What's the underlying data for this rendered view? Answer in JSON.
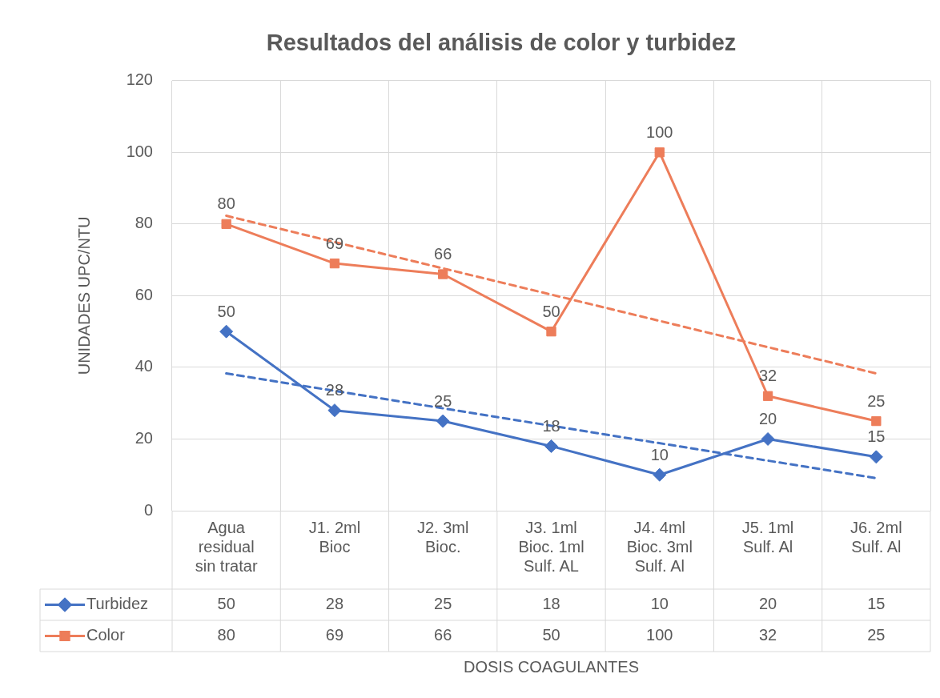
{
  "chart_data": {
    "type": "line",
    "title": "Resultados del análisis de color y turbidez",
    "annotations": [
      "DOSIS COAGULANTES"
    ],
    "ylabel": "UNIDADES UPC/NTU",
    "categories": [
      "Agua residual sin tratar",
      "J1. 2ml Bioc",
      "J2. 3ml Bioc.",
      "J3. 1ml Bioc. 1ml Sulf. AL",
      "J4. 4ml Bioc. 3ml Sulf. Al",
      "J5. 1ml Sulf. Al",
      "J6. 2ml Sulf. Al"
    ],
    "series": [
      {
        "name": "Turbidez",
        "color": "#4472c4",
        "marker": "diamond",
        "values": [
          50,
          28,
          25,
          18,
          10,
          20,
          15
        ],
        "value_labels": [
          "50",
          "28",
          "25",
          "18",
          "10",
          "20",
          "15"
        ]
      },
      {
        "name": "Color",
        "color": "#ed7d5a",
        "marker": "square",
        "values": [
          80,
          69,
          66,
          50,
          100,
          32,
          25
        ],
        "value_labels": [
          "80",
          "69",
          "66",
          "50",
          "100",
          "32",
          "25"
        ]
      },
      {
        "type": "line",
        "color": "#4472c4",
        "marker": "none",
        "line_style": "dashed",
        "x": [
          "Agua residual sin tratar",
          "J6. 2ml Sulf. Al"
        ],
        "values": [
          38.3,
          9.1
        ]
      },
      {
        "type": "line",
        "color": "#ed7d5a",
        "marker": "none",
        "line_style": "dashed",
        "x": [
          "Agua residual sin tratar",
          "J6. 2ml Sulf. Al"
        ],
        "values": [
          82.3,
          38.3
        ]
      }
    ],
    "ylim": [
      0,
      120
    ],
    "yticks": [
      0,
      20,
      40,
      60,
      80,
      100,
      120
    ],
    "grid": true,
    "legend": "bottom"
  }
}
